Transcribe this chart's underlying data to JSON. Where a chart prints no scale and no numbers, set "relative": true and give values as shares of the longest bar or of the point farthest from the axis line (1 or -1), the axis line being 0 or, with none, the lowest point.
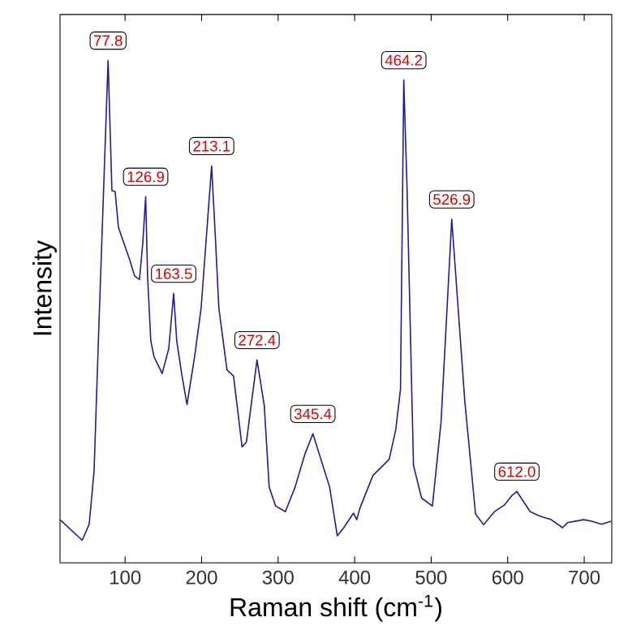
{
  "chart_data": {
    "type": "line",
    "xlabel": "Raman shift (cm$^{-1}$)",
    "ylabel": "Intensity",
    "relative": true,
    "xlim": [
      15,
      736
    ],
    "xticks": [
      100,
      200,
      300,
      400,
      500,
      600,
      700
    ],
    "series": [
      {
        "color": "#1c1c9c",
        "x": [
          15,
          44,
          53.1,
          59.5,
          65.8,
          77.8,
          82.8,
          87,
          91.3,
          106.1,
          112.5,
          118.8,
          123.1,
          126.9,
          129.4,
          133.6,
          137.9,
          148.5,
          157,
          163.5,
          167.5,
          173.9,
          180.9,
          190.8,
          199.3,
          213.1,
          218.4,
          222.6,
          233.2,
          241.7,
          252.9,
          258.6,
          272.4,
          281.9,
          288.3,
          296.8,
          309.5,
          322.2,
          334.9,
          345.4,
          367.3,
          377.3,
          385.8,
          398.5,
          402.7,
          406.9,
          423.9,
          445.1,
          453.6,
          459.9,
          464.2,
          468.4,
          476.9,
          487.5,
          501.6,
          512.9,
          526.9,
          543.9,
          558,
          568.6,
          582.8,
          595.5,
          606.1,
          612.0,
          629.4,
          642.1,
          656.9,
          671.7,
          678.1,
          699.3,
          709.9,
          722.6,
          735.3
        ],
        "values": [
          0.086,
          0.045,
          0.077,
          0.183,
          0.474,
          1.0,
          0.741,
          0.739,
          0.668,
          0.603,
          0.571,
          0.564,
          0.636,
          0.729,
          0.571,
          0.442,
          0.41,
          0.377,
          0.426,
          0.536,
          0.442,
          0.377,
          0.315,
          0.41,
          0.506,
          0.79,
          0.636,
          0.506,
          0.384,
          0.372,
          0.231,
          0.241,
          0.404,
          0.313,
          0.151,
          0.113,
          0.102,
          0.151,
          0.216,
          0.257,
          0.151,
          0.054,
          0.07,
          0.099,
          0.086,
          0.109,
          0.174,
          0.206,
          0.264,
          0.345,
          0.961,
          0.75,
          0.194,
          0.129,
          0.113,
          0.28,
          0.684,
          0.323,
          0.097,
          0.076,
          0.102,
          0.115,
          0.135,
          0.142,
          0.102,
          0.093,
          0.086,
          0.07,
          0.08,
          0.086,
          0.083,
          0.077,
          0.083
        ]
      }
    ],
    "annotations": [
      {
        "text": "77.8",
        "x": 77.8,
        "y": 1.0
      },
      {
        "text": "126.9",
        "x": 126.9,
        "y": 0.729
      },
      {
        "text": "163.5",
        "x": 163.5,
        "y": 0.536
      },
      {
        "text": "213.1",
        "x": 213.1,
        "y": 0.79
      },
      {
        "text": "272.4",
        "x": 272.4,
        "y": 0.404
      },
      {
        "text": "345.4",
        "x": 345.4,
        "y": 0.257
      },
      {
        "text": "464.2",
        "x": 464.2,
        "y": 0.961
      },
      {
        "text": "526.9",
        "x": 526.9,
        "y": 0.684
      },
      {
        "text": "612.0",
        "x": 612.0,
        "y": 0.142
      }
    ]
  }
}
